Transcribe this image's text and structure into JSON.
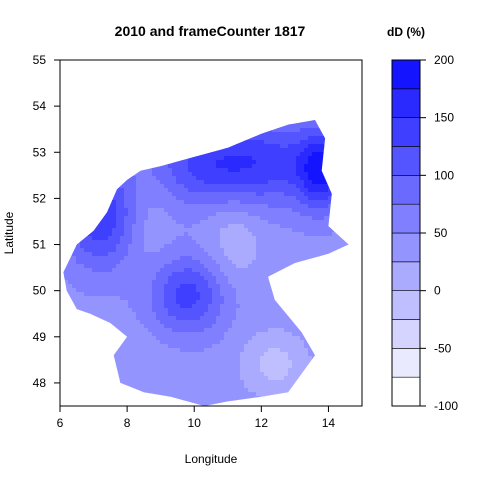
{
  "chart_data": {
    "type": "heatmap",
    "title": "2010 and frameCounter 1817",
    "xlabel": "Longitude",
    "ylabel": "Latitude",
    "xlim": [
      6,
      15
    ],
    "ylim": [
      47.5,
      55
    ],
    "x_ticks": [
      6,
      8,
      10,
      12,
      14
    ],
    "y_ticks": [
      48,
      49,
      50,
      51,
      52,
      53,
      54,
      55
    ],
    "legend": {
      "title": "dD (%)",
      "placement": "right",
      "range": [
        -100,
        200
      ],
      "levels": [
        -100,
        -75,
        -50,
        -25,
        0,
        25,
        50,
        75,
        100,
        125,
        150,
        175,
        200
      ],
      "tick_labels": [
        -100,
        -50,
        0,
        50,
        100,
        150,
        200
      ],
      "colors": [
        "#ffffff",
        "#eaeaff",
        "#d4d4ff",
        "#bfbfff",
        "#aaaaff",
        "#9494ff",
        "#7f7fff",
        "#6a6aff",
        "#5555ff",
        "#3f3fff",
        "#2a2aff",
        "#1414ff"
      ]
    },
    "region_outline": [
      [
        6.3,
        50.7
      ],
      [
        6.5,
        51.0
      ],
      [
        7.0,
        51.3
      ],
      [
        7.4,
        51.7
      ],
      [
        7.7,
        52.2
      ],
      [
        8.0,
        52.4
      ],
      [
        8.4,
        52.6
      ],
      [
        9.0,
        52.7
      ],
      [
        10.0,
        52.9
      ],
      [
        11.0,
        53.1
      ],
      [
        12.0,
        53.4
      ],
      [
        12.8,
        53.6
      ],
      [
        13.6,
        53.7
      ],
      [
        13.9,
        53.3
      ],
      [
        13.8,
        52.6
      ],
      [
        14.1,
        52.1
      ],
      [
        14.0,
        51.4
      ],
      [
        14.6,
        51.0
      ],
      [
        14.0,
        50.8
      ],
      [
        13.0,
        50.6
      ],
      [
        12.2,
        50.3
      ],
      [
        12.4,
        49.8
      ],
      [
        13.2,
        49.1
      ],
      [
        13.6,
        48.6
      ],
      [
        13.2,
        48.2
      ],
      [
        12.8,
        47.8
      ],
      [
        12.0,
        47.7
      ],
      [
        11.0,
        47.6
      ],
      [
        10.3,
        47.5
      ],
      [
        9.3,
        47.7
      ],
      [
        8.5,
        47.8
      ],
      [
        7.8,
        48.0
      ],
      [
        7.6,
        48.6
      ],
      [
        8.0,
        49.0
      ],
      [
        7.5,
        49.3
      ],
      [
        6.9,
        49.5
      ],
      [
        6.5,
        49.6
      ],
      [
        6.2,
        50.0
      ],
      [
        6.1,
        50.4
      ]
    ],
    "contour_field": {
      "base_value": 40,
      "features": [
        {
          "lon": 9.8,
          "lat": 49.9,
          "value": 135,
          "sigma_lon": 0.8,
          "sigma_lat": 0.6
        },
        {
          "lon": 7.2,
          "lat": 51.6,
          "value": 145,
          "sigma_lon": 0.8,
          "sigma_lat": 0.8
        },
        {
          "lon": 12.2,
          "lat": 52.8,
          "value": 125,
          "sigma_lon": 1.3,
          "sigma_lat": 0.7
        },
        {
          "lon": 10.2,
          "lat": 52.7,
          "value": 115,
          "sigma_lon": 1.2,
          "sigma_lat": 0.6
        },
        {
          "lon": 13.8,
          "lat": 52.6,
          "value": 160,
          "sigma_lon": 0.5,
          "sigma_lat": 0.6
        },
        {
          "lon": 8.6,
          "lat": 51.6,
          "value": 20,
          "sigma_lon": 0.5,
          "sigma_lat": 0.9
        },
        {
          "lon": 12.4,
          "lat": 48.4,
          "value": -10,
          "sigma_lon": 0.7,
          "sigma_lat": 0.5
        },
        {
          "lon": 11.2,
          "lat": 51.1,
          "value": 5,
          "sigma_lon": 0.6,
          "sigma_lat": 0.7
        },
        {
          "lon": 8.2,
          "lat": 48.3,
          "value": 30,
          "sigma_lon": 0.9,
          "sigma_lat": 0.6
        }
      ]
    }
  }
}
